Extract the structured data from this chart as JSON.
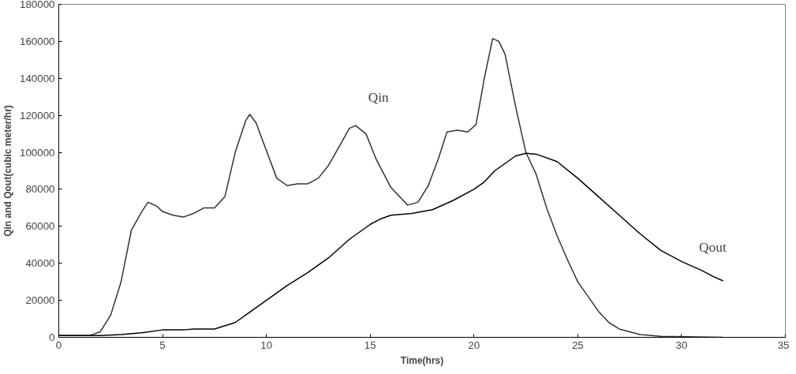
{
  "chart_data": {
    "type": "line",
    "xlabel": "Time(hrs)",
    "ylabel": "Qin and Qout(cubic meter/hr)",
    "xlim": [
      0,
      35
    ],
    "xticks": [
      0,
      5,
      10,
      15,
      20,
      25,
      30,
      35
    ],
    "ylim": [
      0,
      180000
    ],
    "yticks": [
      0,
      20000,
      40000,
      60000,
      80000,
      100000,
      120000,
      140000,
      160000,
      180000
    ],
    "grid": false,
    "marker": "none",
    "line_style": "solid",
    "series": [
      {
        "name": "Qin",
        "color": "#333333",
        "x": [
          0,
          1.5,
          2,
          2.5,
          3,
          3.5,
          4,
          4.3,
          4.7,
          5,
          5.5,
          6,
          6.5,
          7,
          7.5,
          8,
          8.5,
          9,
          9.2,
          9.5,
          10,
          10.5,
          11,
          11.5,
          12,
          12.5,
          13,
          13.5,
          14,
          14.3,
          14.8,
          15.3,
          16,
          16.8,
          17.3,
          17.8,
          18.3,
          18.7,
          19.2,
          19.7,
          20.1,
          20.5,
          20.9,
          21.2,
          21.5,
          22,
          22.5,
          23,
          23.5,
          24,
          24.5,
          25,
          25.5,
          26,
          26.5,
          27,
          28,
          29,
          32
        ],
        "values": [
          1000,
          1000,
          3000,
          12000,
          30000,
          58000,
          68000,
          73000,
          71000,
          68000,
          66000,
          65000,
          67000,
          70000,
          70000,
          76000,
          100000,
          117000,
          120500,
          116000,
          101000,
          86000,
          82000,
          83000,
          83000,
          86000,
          93000,
          103000,
          113000,
          114500,
          110000,
          96000,
          81000,
          71500,
          73000,
          82000,
          97000,
          111000,
          112000,
          111000,
          115000,
          140000,
          161500,
          160000,
          153000,
          125000,
          100000,
          88000,
          70000,
          55000,
          42000,
          30000,
          22000,
          14000,
          8000,
          4500,
          1500,
          500,
          0
        ]
      },
      {
        "name": "Qout",
        "color": "#000000",
        "x": [
          0,
          2,
          3,
          4,
          5,
          6,
          6.5,
          7.5,
          8.5,
          9,
          10,
          11,
          12,
          13,
          14,
          15,
          15.5,
          16,
          17,
          18,
          19,
          20,
          20.5,
          21,
          22,
          22.5,
          23,
          24,
          25,
          26,
          27,
          28,
          29,
          30,
          31,
          31.5,
          32
        ],
        "values": [
          1000,
          1000,
          1500,
          2500,
          4000,
          4000,
          4500,
          4500,
          8000,
          12000,
          20000,
          28000,
          35000,
          43000,
          53000,
          61000,
          64000,
          66000,
          67000,
          69000,
          74000,
          80000,
          84000,
          90000,
          98000,
          99500,
          99000,
          95000,
          86000,
          76000,
          66000,
          56000,
          47000,
          41000,
          36000,
          33000,
          30500
        ]
      }
    ]
  }
}
